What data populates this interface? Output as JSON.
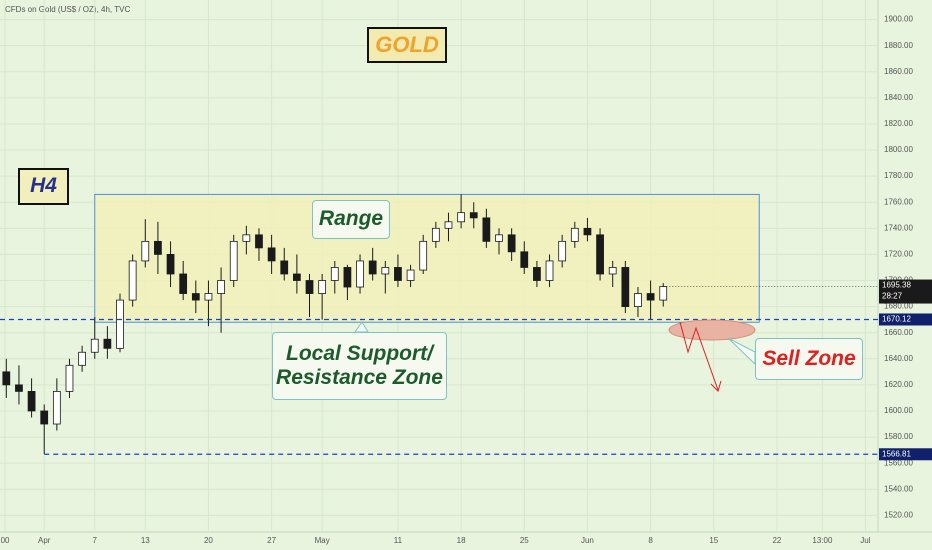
{
  "chart_data": {
    "type": "candlestick",
    "title": "CFDs on Gold (US$ / OZ), 4h, TVC",
    "x": [
      -3,
      -2,
      -1,
      0,
      1,
      2,
      3,
      4,
      5,
      6,
      7,
      8,
      9,
      10,
      11,
      12,
      13,
      14,
      15,
      16,
      17,
      18,
      19,
      20,
      21,
      22,
      23,
      24,
      25,
      26,
      27,
      28,
      29,
      30,
      31,
      32,
      33,
      34,
      35,
      36,
      37,
      38,
      39,
      40,
      41,
      42,
      43,
      44,
      45,
      46,
      47,
      48,
      49
    ],
    "open": [
      1630,
      1620,
      1615,
      1600,
      1590,
      1615,
      1635,
      1645,
      1655,
      1648,
      1685,
      1715,
      1730,
      1720,
      1705,
      1690,
      1685,
      1690,
      1700,
      1730,
      1735,
      1725,
      1715,
      1705,
      1700,
      1690,
      1700,
      1710,
      1695,
      1715,
      1705,
      1710,
      1700,
      1708,
      1730,
      1740,
      1745,
      1752,
      1748,
      1730,
      1735,
      1722,
      1710,
      1700,
      1715,
      1730,
      1740,
      1735,
      1705,
      1710,
      1680,
      1690,
      1685
    ],
    "high": [
      1640,
      1635,
      1625,
      1605,
      1625,
      1640,
      1650,
      1672,
      1665,
      1690,
      1720,
      1747,
      1745,
      1730,
      1715,
      1700,
      1700,
      1710,
      1735,
      1742,
      1740,
      1735,
      1725,
      1720,
      1705,
      1705,
      1715,
      1712,
      1720,
      1725,
      1715,
      1720,
      1712,
      1735,
      1745,
      1752,
      1766,
      1760,
      1755,
      1740,
      1740,
      1730,
      1715,
      1720,
      1735,
      1745,
      1748,
      1740,
      1715,
      1715,
      1695,
      1700,
      1698
    ],
    "low": [
      1610,
      1605,
      1595,
      1567,
      1585,
      1610,
      1630,
      1640,
      1640,
      1645,
      1680,
      1710,
      1705,
      1695,
      1685,
      1675,
      1665,
      1660,
      1695,
      1720,
      1715,
      1705,
      1700,
      1690,
      1672,
      1670,
      1690,
      1685,
      1690,
      1700,
      1690,
      1695,
      1695,
      1705,
      1725,
      1730,
      1740,
      1740,
      1725,
      1720,
      1715,
      1705,
      1695,
      1695,
      1710,
      1725,
      1730,
      1700,
      1695,
      1675,
      1672,
      1670,
      1680
    ],
    "close": [
      1620,
      1615,
      1600,
      1590,
      1615,
      1635,
      1645,
      1655,
      1648,
      1685,
      1715,
      1730,
      1720,
      1705,
      1690,
      1685,
      1690,
      1700,
      1730,
      1735,
      1725,
      1715,
      1705,
      1700,
      1690,
      1700,
      1710,
      1695,
      1715,
      1705,
      1710,
      1700,
      1708,
      1730,
      1740,
      1745,
      1752,
      1748,
      1730,
      1735,
      1722,
      1710,
      1700,
      1715,
      1730,
      1740,
      1735,
      1705,
      1710,
      1680,
      1690,
      1685,
      1695.38
    ],
    "up_color": "#ffffff",
    "down_color": "#1a1a1a",
    "xlim": [
      -3.5,
      66
    ],
    "xticks": [
      {
        "value": -3.1,
        "label": "00"
      },
      {
        "value": 0,
        "label": "Apr"
      },
      {
        "value": 4,
        "label": "7"
      },
      {
        "value": 8,
        "label": "13"
      },
      {
        "value": 13,
        "label": "20"
      },
      {
        "value": 18,
        "label": "27"
      },
      {
        "value": 22,
        "label": "May"
      },
      {
        "value": 28,
        "label": "11"
      },
      {
        "value": 33,
        "label": "18"
      },
      {
        "value": 38,
        "label": "25"
      },
      {
        "value": 43,
        "label": "Jun"
      },
      {
        "value": 48,
        "label": "8"
      },
      {
        "value": 53,
        "label": "15"
      },
      {
        "value": 58,
        "label": "22"
      },
      {
        "value": 61.6,
        "label": "13:00"
      },
      {
        "value": 65,
        "label": "Jul"
      }
    ],
    "ylim": [
      1508,
      1915
    ],
    "yticks": [
      {
        "value": 1520,
        "label": "1520.00"
      },
      {
        "value": 1540,
        "label": "1540.00"
      },
      {
        "value": 1560,
        "label": "1560.00"
      },
      {
        "value": 1580,
        "label": "1580.00"
      },
      {
        "value": 1600,
        "label": "1600.00"
      },
      {
        "value": 1620,
        "label": "1620.00"
      },
      {
        "value": 1640,
        "label": "1640.00"
      },
      {
        "value": 1660,
        "label": "1660.00"
      },
      {
        "value": 1680,
        "label": "1680.00"
      },
      {
        "value": 1700,
        "label": "1700.00"
      },
      {
        "value": 1720,
        "label": "1720.00"
      },
      {
        "value": 1740,
        "label": "1740.00"
      },
      {
        "value": 1760,
        "label": "1760.00"
      },
      {
        "value": 1780,
        "label": "1780.00"
      },
      {
        "value": 1800,
        "label": "1800.00"
      },
      {
        "value": 1820,
        "label": "1820.00"
      },
      {
        "value": 1840,
        "label": "1840.00"
      },
      {
        "value": 1860,
        "label": "1860.00"
      },
      {
        "value": 1880,
        "label": "1880.00"
      },
      {
        "value": 1900,
        "label": "1900.00"
      }
    ],
    "grid": true,
    "range_box": {
      "x": [
        4,
        56.6
      ],
      "y": [
        1668,
        1766
      ],
      "color": "#4a90e2"
    },
    "levels": [
      {
        "value": 1670.12,
        "from": -3.5,
        "color": "#1a3fd0"
      },
      {
        "value": 1566.81,
        "from": 0,
        "color": "#1a3fd0"
      }
    ],
    "last_price": 1695.38,
    "countdown": "28:27",
    "annotations": {
      "gold": "GOLD",
      "h4": "H4",
      "range": "Range",
      "support": [
        "Local Support/",
        "Resistance Zone"
      ],
      "sell": "Sell Zone"
    }
  }
}
